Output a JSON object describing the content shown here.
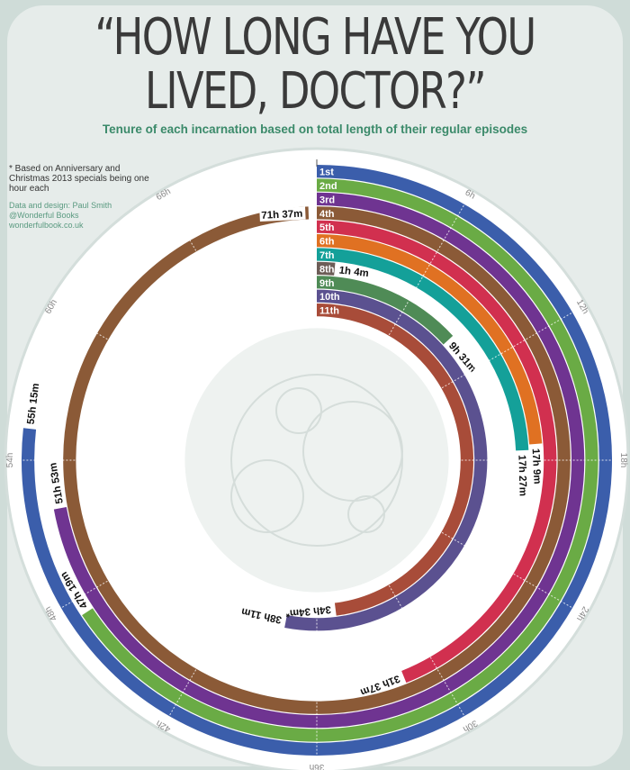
{
  "header": {
    "title_line1": "“HOW LONG HAVE YOU",
    "title_line2": "LIVED, DOCTOR?”",
    "subtitle": "Tenure of each incarnation based on total length of their regular episodes"
  },
  "notes": {
    "footnote": "* Based on Anniversary and Christmas 2013 specials being one hour each",
    "credit_line1": "Data and design: Paul Smith",
    "credit_line2": "@Wonderful Books",
    "credit_line3": "wonderfulbook.co.uk"
  },
  "chart_data": {
    "type": "radial bar",
    "title": "“HOW LONG HAVE YOU LIVED, DOCTOR?”",
    "subtitle": "Tenure of each incarnation based on total length of their regular episodes",
    "axis_max_hours": 72,
    "ticks": [
      "6h",
      "12h",
      "18h",
      "24h",
      "30h",
      "36h",
      "42h",
      "48h",
      "54h",
      "60h",
      "66h"
    ],
    "grid": true,
    "series": [
      {
        "name": "1st",
        "hours": 55.25,
        "label": "55h 15m",
        "color": "#3b5eab"
      },
      {
        "name": "2nd",
        "hours": 47.317,
        "label": "47h 19m",
        "color": "#6aab45"
      },
      {
        "name": "3rd",
        "hours": 51.883,
        "label": "51h 53m",
        "color": "#6f3491"
      },
      {
        "name": "4th",
        "hours": 71.617,
        "label": "71h 37m",
        "color": "#8b5a37"
      },
      {
        "name": "5th",
        "hours": 31.617,
        "label": "31h 37m",
        "color": "#d1304f"
      },
      {
        "name": "6th",
        "hours": 17.15,
        "label": "17h 9m",
        "color": "#e07122"
      },
      {
        "name": "7th",
        "hours": 17.45,
        "label": "17h 27m",
        "color": "#14a099"
      },
      {
        "name": "8th",
        "hours": 1.067,
        "label": "1h 4m",
        "color": "#6d5d57"
      },
      {
        "name": "9th",
        "hours": 9.517,
        "label": "9h 31m",
        "color": "#4f8b56"
      },
      {
        "name": "10th",
        "hours": 38.183,
        "label": "38h 11m",
        "color": "#5b5190"
      },
      {
        "name": "11th",
        "hours": 34.567,
        "label": "34h 34m*",
        "color": "#a84c39"
      }
    ]
  }
}
